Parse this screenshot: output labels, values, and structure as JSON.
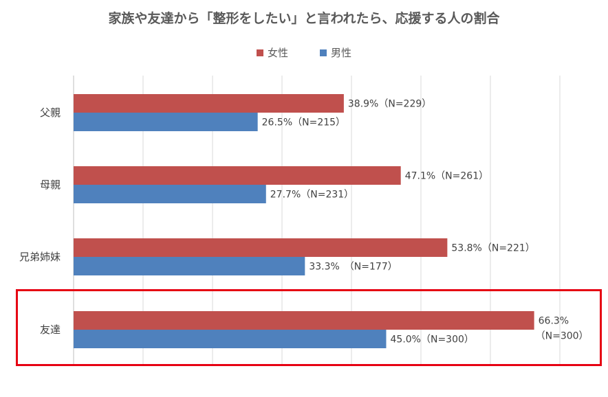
{
  "chart_data": {
    "type": "bar",
    "orientation": "horizontal",
    "title": "家族や友達から「整形をしたい」と言われたら、応援する人の割合",
    "categories": [
      "父親",
      "母親",
      "兄弟姉妹",
      "友達"
    ],
    "series": [
      {
        "name": "女性",
        "color": "#c0504d",
        "values": [
          38.9,
          47.1,
          53.8,
          66.3
        ],
        "labels": [
          "38.9%（N=229）",
          "47.1%（N=261）",
          "53.8%（N=221）",
          "66.3%\n（N=300）"
        ]
      },
      {
        "name": "男性",
        "color": "#4f81bd",
        "values": [
          26.5,
          27.7,
          33.3,
          45.0
        ],
        "labels": [
          "26.5%（N=215）",
          "27.7%（N=231）",
          "33.3%　（N=177）",
          "45.0%（N=300）"
        ]
      }
    ],
    "xlim": [
      0,
      70
    ],
    "grid": true,
    "legend_position": "top",
    "highlighted_category": "友達",
    "highlight_color": "#e60012"
  }
}
